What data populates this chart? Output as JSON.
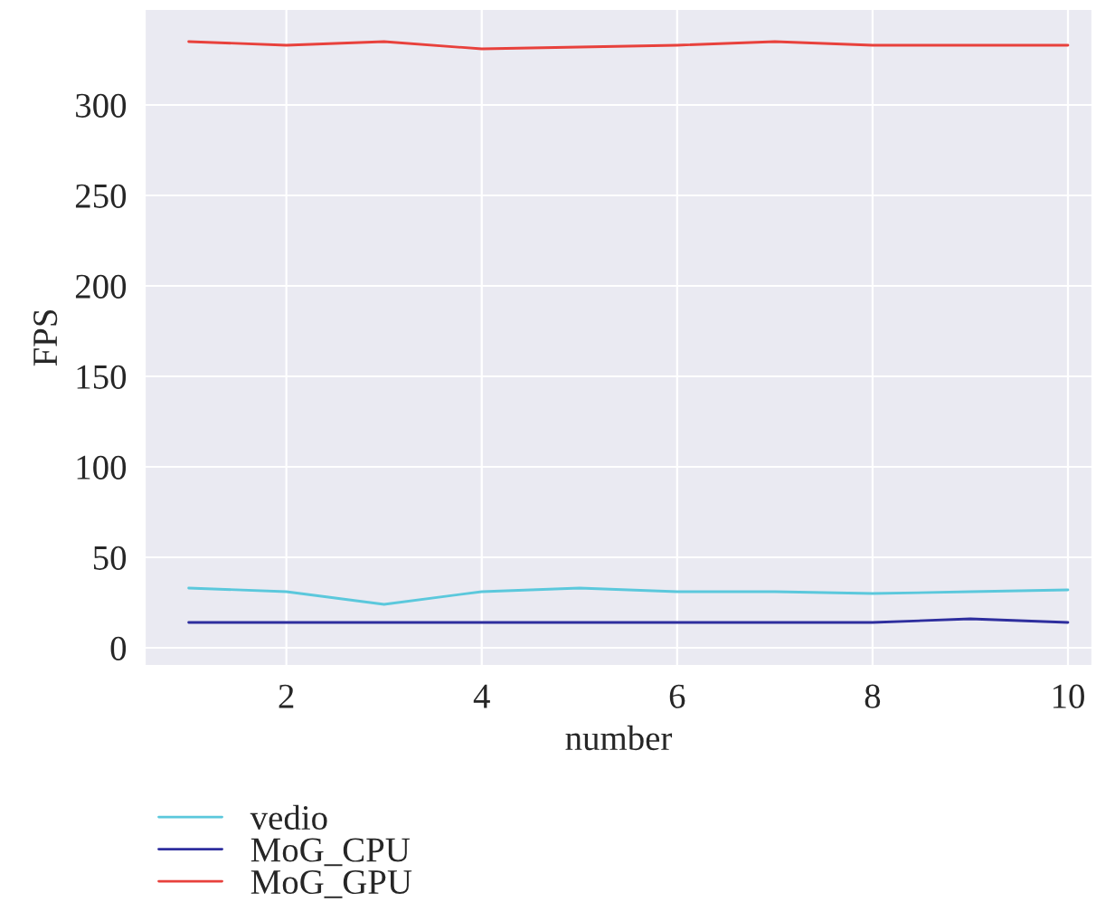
{
  "chart_data": {
    "type": "line",
    "xlabel": "number",
    "ylabel": "FPS",
    "x": [
      1,
      2,
      3,
      4,
      5,
      6,
      7,
      8,
      9,
      10
    ],
    "series": [
      {
        "name": "vedio",
        "color": "#5bc8dc",
        "values": [
          33,
          31,
          24,
          31,
          33,
          31,
          31,
          30,
          31,
          32
        ]
      },
      {
        "name": "MoG_CPU",
        "color": "#2e2e9e",
        "values": [
          14,
          14,
          14,
          14,
          14,
          14,
          14,
          14,
          16,
          14
        ]
      },
      {
        "name": "MoG_GPU",
        "color": "#e8413c",
        "values": [
          335,
          333,
          335,
          331,
          332,
          333,
          335,
          333,
          333,
          333
        ]
      }
    ],
    "xlim": [
      0.55,
      10.25
    ],
    "ylim": [
      -10,
      353
    ],
    "xticks": [
      2,
      4,
      6,
      8,
      10
    ],
    "yticks": [
      0,
      50,
      100,
      150,
      200,
      250,
      300
    ],
    "grid": true,
    "legend": "bottom left",
    "marker": "none",
    "line_style": "solid"
  }
}
